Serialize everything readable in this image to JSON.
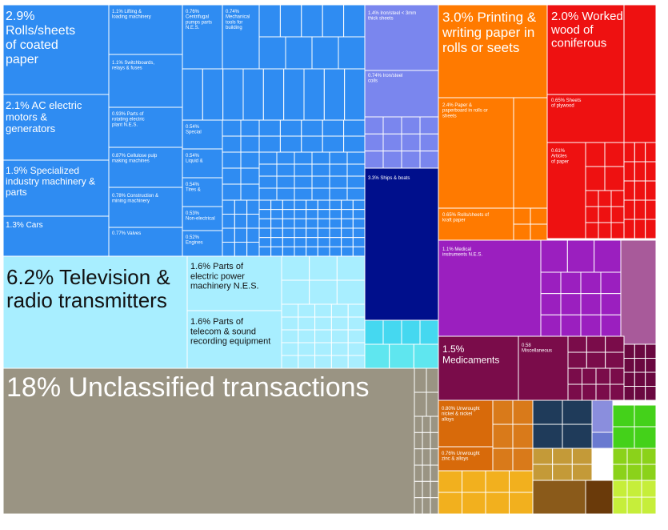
{
  "chart_data": {
    "type": "treemap",
    "title": "",
    "labelled_items": [
      {
        "label": "18% Unclassified transactions",
        "value": 18,
        "color": "#9a9483"
      },
      {
        "label": "6.2% Television & radio transmitters",
        "value": 6.2,
        "color": "#a8eeff"
      },
      {
        "label": "3.0% Printing & writing paper in rolls or seets",
        "value": 3.0,
        "color": "#ff7a00"
      },
      {
        "label": "2.9% Rolls/sheets of coated paper",
        "value": 2.9,
        "color": "#2f8cf2"
      },
      {
        "label": "2.1% AC electric motors & generators",
        "value": 2.1,
        "color": "#2f8cf2"
      },
      {
        "label": "2.0% Worked wood of coniferous",
        "value": 2.0,
        "color": "#ee1111"
      },
      {
        "label": "1.9% Specialized industry machinery & parts",
        "value": 1.9,
        "color": "#2f8cf2"
      },
      {
        "label": "1.6% Parts of electric power machinery N.E.S.",
        "value": 1.6,
        "color": "#a8eeff"
      },
      {
        "label": "1.6% Parts of telecom & sound recording equipment",
        "value": 1.6,
        "color": "#a8eeff"
      },
      {
        "label": "1.5% Medicaments",
        "value": 1.5,
        "color": "#7a0c4a"
      },
      {
        "label": "1.3% Cars",
        "value": 1.3,
        "color": "#2f8cf2"
      },
      {
        "label": "1.1% Lifting & loading machinery",
        "value": 1.1,
        "color": "#2f8cf2"
      },
      {
        "label": "1.1% Switchboards, relays & fuses",
        "value": 1.1,
        "color": "#2f8cf2"
      },
      {
        "label": "1.1% Medical instruments N.E.S.",
        "value": 1.1,
        "color": "#9b1fbf"
      },
      {
        "label": "1.4% Iron/steel < 3mm thick sheets",
        "value": 1.4,
        "color": "#7a86ee"
      },
      {
        "label": "3.3% Ships & boats",
        "value": 3.3,
        "color": "#000f8c"
      },
      {
        "label": "0.93% Parts of rotating electric plant N.E.S.",
        "value": 0.93,
        "color": "#2f8cf2"
      },
      {
        "label": "0.87% Cellulose pulp making machines",
        "value": 0.87,
        "color": "#2f8cf2"
      },
      {
        "label": "0.78% Construction & mining machinery",
        "value": 0.78,
        "color": "#2f8cf2"
      },
      {
        "label": "0.77% Valves",
        "value": 0.77,
        "color": "#2f8cf2"
      },
      {
        "label": "0.76% Centrifugal pumps parts N.E.S.",
        "value": 0.76,
        "color": "#2f8cf2"
      },
      {
        "label": "0.74% Mechanical tools for building",
        "value": 0.74,
        "color": "#2f8cf2"
      },
      {
        "label": "0.74% Iron/steel coils",
        "value": 0.74,
        "color": "#7a86ee"
      },
      {
        "label": "2.4% Paper & paperboard in rolls or sheets",
        "value": 2.4,
        "color": "#ff7a00"
      },
      {
        "label": "0.65% Sheets of plywood",
        "value": 0.65,
        "color": "#ee1111"
      },
      {
        "label": "0.61% Articles of paper",
        "value": 0.61,
        "color": "#ee1111"
      },
      {
        "label": "0.65% Rolls/sheets of kraft paper",
        "value": 0.65,
        "color": "#ff7a00"
      },
      {
        "label": "0.54% Special",
        "value": 0.54,
        "color": "#2f8cf2"
      },
      {
        "label": "0.54% Liquid &",
        "value": 0.54,
        "color": "#2f8cf2"
      },
      {
        "label": "0.54% Tires &",
        "value": 0.54,
        "color": "#2f8cf2"
      },
      {
        "label": "0.53% Non-electrical",
        "value": 0.53,
        "color": "#2f8cf2"
      },
      {
        "label": "0.52% Engines",
        "value": 0.52,
        "color": "#2f8cf2"
      },
      {
        "label": "0.58 Miscellaneous",
        "value": 0.58,
        "color": "#7a0c4a"
      },
      {
        "label": "0.80% Unwrought nickel & nickel alloys",
        "value": 0.8,
        "color": "#d86a0a"
      },
      {
        "label": "0.76% Unwrought zinc & alloys",
        "value": 0.76,
        "color": "#d86a0a"
      }
    ]
  }
}
